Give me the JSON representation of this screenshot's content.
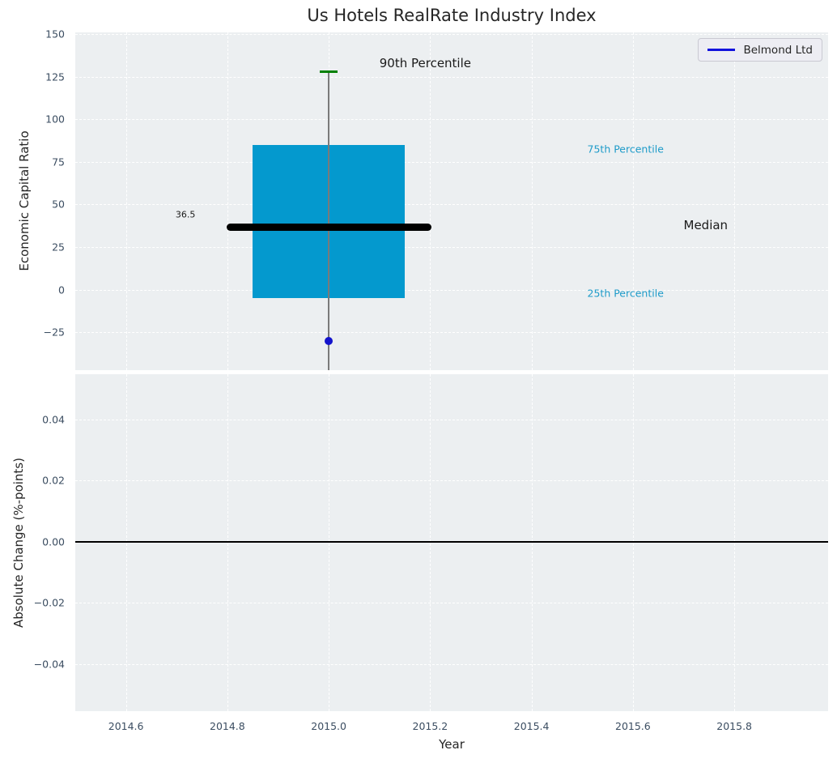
{
  "figure": {
    "title": "Us Hotels RealRate Industry Index",
    "xlabel": "Year",
    "legend": {
      "label": "Belmond Ltd",
      "line_color": "#1212dd"
    }
  },
  "chart_data": [
    {
      "type": "box",
      "title": "Us Hotels RealRate Industry Index",
      "ylabel": "Economic Capital Ratio",
      "xlabel": "Year",
      "legend": [
        "Belmond Ltd"
      ],
      "legend_position": "upper right",
      "grid": true,
      "xlim": [
        2014.5,
        2015.985
      ],
      "ylim": [
        -47.3,
        151
      ],
      "yticks": [
        {
          "v": 150,
          "label": "150"
        },
        {
          "v": 125,
          "label": "125"
        },
        {
          "v": 100,
          "label": "100"
        },
        {
          "v": 75,
          "label": "75"
        },
        {
          "v": 50,
          "label": "50"
        },
        {
          "v": 25,
          "label": "25"
        },
        {
          "v": 0,
          "label": "0"
        },
        {
          "v": -25,
          "label": "−25"
        }
      ],
      "xticks": [
        {
          "v": 2014.6,
          "label": "2014.6"
        },
        {
          "v": 2014.8,
          "label": "2014.8"
        },
        {
          "v": 2015.0,
          "label": "2015.0"
        },
        {
          "v": 2015.2,
          "label": "2015.2"
        },
        {
          "v": 2015.4,
          "label": "2015.4"
        },
        {
          "v": 2015.6,
          "label": "2015.6"
        },
        {
          "v": 2015.8,
          "label": "2015.8"
        }
      ],
      "show_xtick_labels": false,
      "box": {
        "x": 2015.0,
        "box_width": 0.3,
        "q1": -5,
        "median": 36.5,
        "q3": 85,
        "p90": 128,
        "median_line_span": 0.404,
        "median_line_thickness": 9,
        "cap_span": 0.035,
        "whisker_clipped_low": true,
        "outlier": {
          "x": 2015.0,
          "y": -30,
          "series": "Belmond Ltd"
        }
      },
      "annotations": [
        {
          "text": "36.5",
          "x": 2014.737,
          "y": 44,
          "align": "right",
          "color": "#1a1a1a",
          "size": 11
        },
        {
          "text": "90th Percentile",
          "x": 2015.1,
          "y": 133,
          "align": "left",
          "color": "#1a1a1a",
          "size": 15
        },
        {
          "text": "75th Percentile",
          "x": 2015.51,
          "y": 82.5,
          "align": "left",
          "color": "#1e9bc9",
          "size": 12.5
        },
        {
          "text": "Median",
          "x": 2015.7,
          "y": 37.8,
          "align": "left",
          "color": "#1a1a1a",
          "size": 15
        },
        {
          "text": "25th Percentile",
          "x": 2015.51,
          "y": -2,
          "align": "left",
          "color": "#1e9bc9",
          "size": 12.5
        }
      ],
      "colors": {
        "box_fill": "#0499ce",
        "median_line": "#000000",
        "whisker": "#7a7a7a",
        "whisker_cap": "#008000",
        "outlier_point": "#1414cc"
      }
    },
    {
      "type": "line",
      "ylabel": "Absolute Change (%-points)",
      "xlabel": "Year",
      "grid": true,
      "xlim": [
        2014.5,
        2015.985
      ],
      "ylim": [
        -0.0554,
        0.0548
      ],
      "yticks": [
        {
          "v": 0.04,
          "label": "0.04"
        },
        {
          "v": 0.02,
          "label": "0.02"
        },
        {
          "v": 0.0,
          "label": "0.00"
        },
        {
          "v": -0.02,
          "label": "−0.02"
        },
        {
          "v": -0.04,
          "label": "−0.04"
        }
      ],
      "xticks": [
        {
          "v": 2014.6,
          "label": "2014.6"
        },
        {
          "v": 2014.8,
          "label": "2014.8"
        },
        {
          "v": 2015.0,
          "label": "2015.0"
        },
        {
          "v": 2015.2,
          "label": "2015.2"
        },
        {
          "v": 2015.4,
          "label": "2015.4"
        },
        {
          "v": 2015.6,
          "label": "2015.6"
        },
        {
          "v": 2015.8,
          "label": "2015.8"
        }
      ],
      "show_xtick_labels": true,
      "zero_line": {
        "y": 0.0,
        "color": "#000000",
        "thickness": 2
      },
      "series": [],
      "annotations": []
    }
  ]
}
